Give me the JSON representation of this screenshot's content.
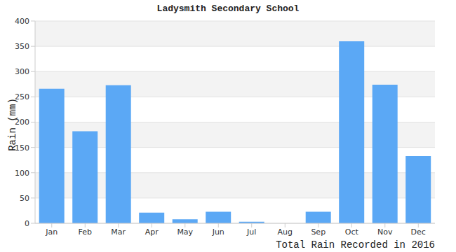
{
  "chart_data": {
    "type": "bar",
    "title": "Ladysmith Secondary School",
    "xlabel": "Total Rain Recorded in 2016",
    "ylabel": "Rain (mm)",
    "categories": [
      "Jan",
      "Feb",
      "Mar",
      "Apr",
      "May",
      "Jun",
      "Jul",
      "Aug",
      "Sep",
      "Oct",
      "Nov",
      "Dec"
    ],
    "values": [
      266,
      182,
      273,
      21,
      8,
      23,
      3,
      0,
      23,
      360,
      274,
      133
    ],
    "color": "#5ba8f5",
    "ylim": [
      0,
      400
    ],
    "yticks": [
      0,
      50,
      100,
      150,
      200,
      250,
      300,
      350,
      400
    ],
    "grid": true
  }
}
